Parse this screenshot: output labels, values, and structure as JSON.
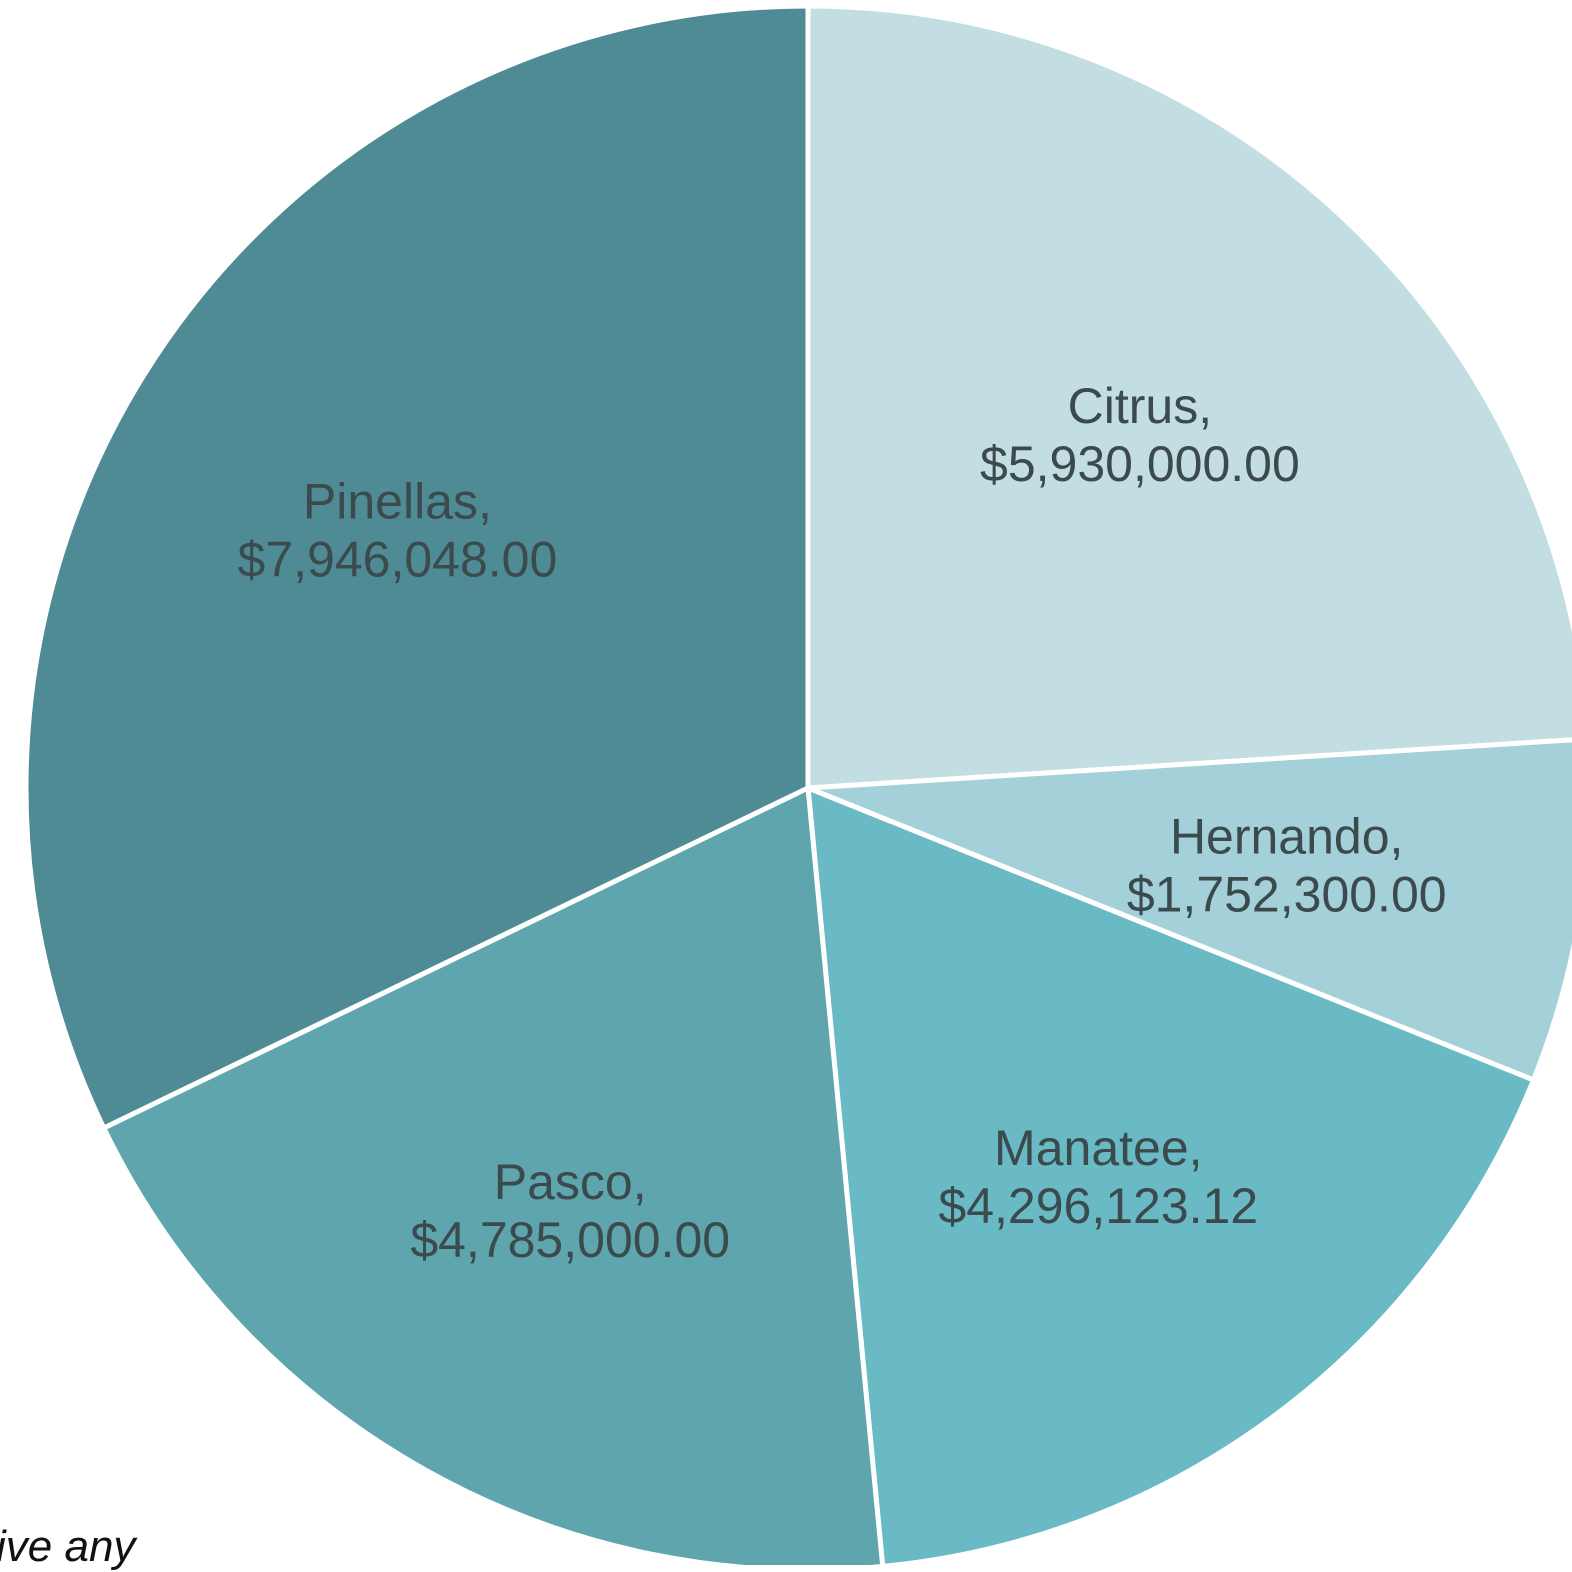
{
  "chart_data": {
    "type": "pie",
    "slices": [
      {
        "category": "Citrus,",
        "label": "$5,930,000.00",
        "value": 5930000.0,
        "color": "#c3dee2"
      },
      {
        "category": "Hernando,",
        "label": "$1,752,300.00",
        "value": 1752300.0,
        "color": "#a3d0d9"
      },
      {
        "category": "Manatee,",
        "label": "$4,296,123.12",
        "value": 4296123.12,
        "color": "#6abac5"
      },
      {
        "category": "Pasco,",
        "label": "$4,785,000.00",
        "value": 4785000.0,
        "color": "#5ea5ae"
      },
      {
        "category": "Pinellas,",
        "label": "$7,946,048.00",
        "value": 7946048.0,
        "color": "#4f8b94"
      }
    ],
    "start_angle_deg": 0,
    "direction": "clockwise",
    "slice_border_color": "#ffffff",
    "label_color": "#3b4a4d",
    "legend": "none"
  },
  "footer_fragment": "ive any"
}
